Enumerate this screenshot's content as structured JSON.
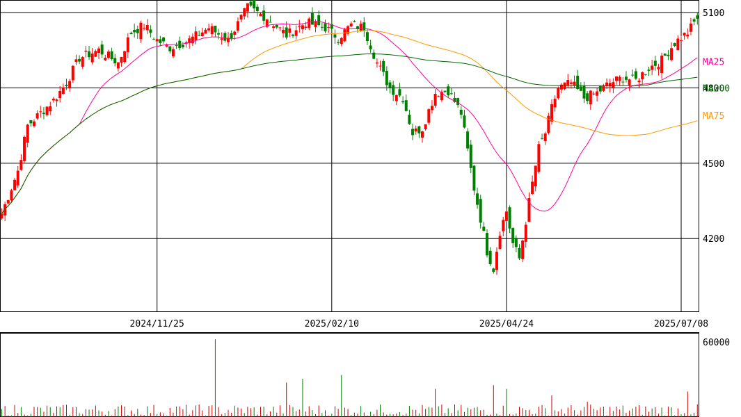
{
  "chart_data": {
    "type": "candlestick",
    "title": "",
    "price_ticks": [
      5100,
      4800,
      4500,
      4200
    ],
    "price_ylim": [
      3910,
      5150
    ],
    "volume_tick": 60000,
    "volume_ylim": [
      0,
      60000
    ],
    "date_labels": [
      "2024/11/25",
      "2025/02/10",
      "2025/04/24",
      "2025/07/08"
    ],
    "date_label_bars": [
      48,
      102,
      156,
      210
    ],
    "bar_count": 216,
    "grid": true,
    "colors": {
      "up": "#ff0000",
      "down": "#008000",
      "ma25": "#ff0099",
      "ma75": "#ff9900",
      "ma200": "#006600",
      "volume": "#cc0000",
      "grid": "#000000"
    },
    "legend": [
      {
        "name": "MA25",
        "color": "#ff0099",
        "value": 4905
      },
      {
        "name": "MA75",
        "color": "#ff9900",
        "value": 4690
      },
      {
        "name": "MA200",
        "color": "#006600",
        "value": 4800
      }
    ],
    "close_anchors": [
      [
        0,
        4300
      ],
      [
        5,
        4470
      ],
      [
        8,
        4650
      ],
      [
        12,
        4700
      ],
      [
        16,
        4750
      ],
      [
        20,
        4820
      ],
      [
        24,
        4920
      ],
      [
        30,
        4950
      ],
      [
        36,
        4900
      ],
      [
        40,
        5020
      ],
      [
        44,
        5050
      ],
      [
        48,
        4990
      ],
      [
        52,
        4960
      ],
      [
        58,
        4990
      ],
      [
        64,
        5040
      ],
      [
        70,
        4990
      ],
      [
        76,
        5120
      ],
      [
        82,
        5080
      ],
      [
        88,
        5010
      ],
      [
        94,
        5060
      ],
      [
        100,
        5040
      ],
      [
        104,
        5000
      ],
      [
        108,
        5050
      ],
      [
        112,
        5040
      ],
      [
        116,
        4900
      ],
      [
        120,
        4800
      ],
      [
        124,
        4760
      ],
      [
        127,
        4620
      ],
      [
        130,
        4640
      ],
      [
        134,
        4780
      ],
      [
        138,
        4790
      ],
      [
        142,
        4700
      ],
      [
        144,
        4550
      ],
      [
        146,
        4400
      ],
      [
        148,
        4280
      ],
      [
        150,
        4150
      ],
      [
        152,
        4080
      ],
      [
        154,
        4230
      ],
      [
        156,
        4310
      ],
      [
        158,
        4180
      ],
      [
        160,
        4120
      ],
      [
        162,
        4270
      ],
      [
        164,
        4420
      ],
      [
        166,
        4560
      ],
      [
        168,
        4620
      ],
      [
        170,
        4720
      ],
      [
        172,
        4800
      ],
      [
        176,
        4820
      ],
      [
        180,
        4760
      ],
      [
        184,
        4780
      ],
      [
        188,
        4820
      ],
      [
        192,
        4840
      ],
      [
        196,
        4830
      ],
      [
        200,
        4880
      ],
      [
        204,
        4910
      ],
      [
        208,
        4980
      ],
      [
        212,
        5020
      ],
      [
        215,
        5080
      ]
    ],
    "spike_volumes": [
      [
        66,
        61000
      ],
      [
        88,
        27000
      ],
      [
        93,
        30000
      ],
      [
        105,
        33000
      ],
      [
        134,
        22000
      ],
      [
        152,
        25000
      ],
      [
        156,
        22000
      ],
      [
        170,
        17000
      ],
      [
        181,
        12000
      ],
      [
        212,
        20000
      ]
    ]
  }
}
